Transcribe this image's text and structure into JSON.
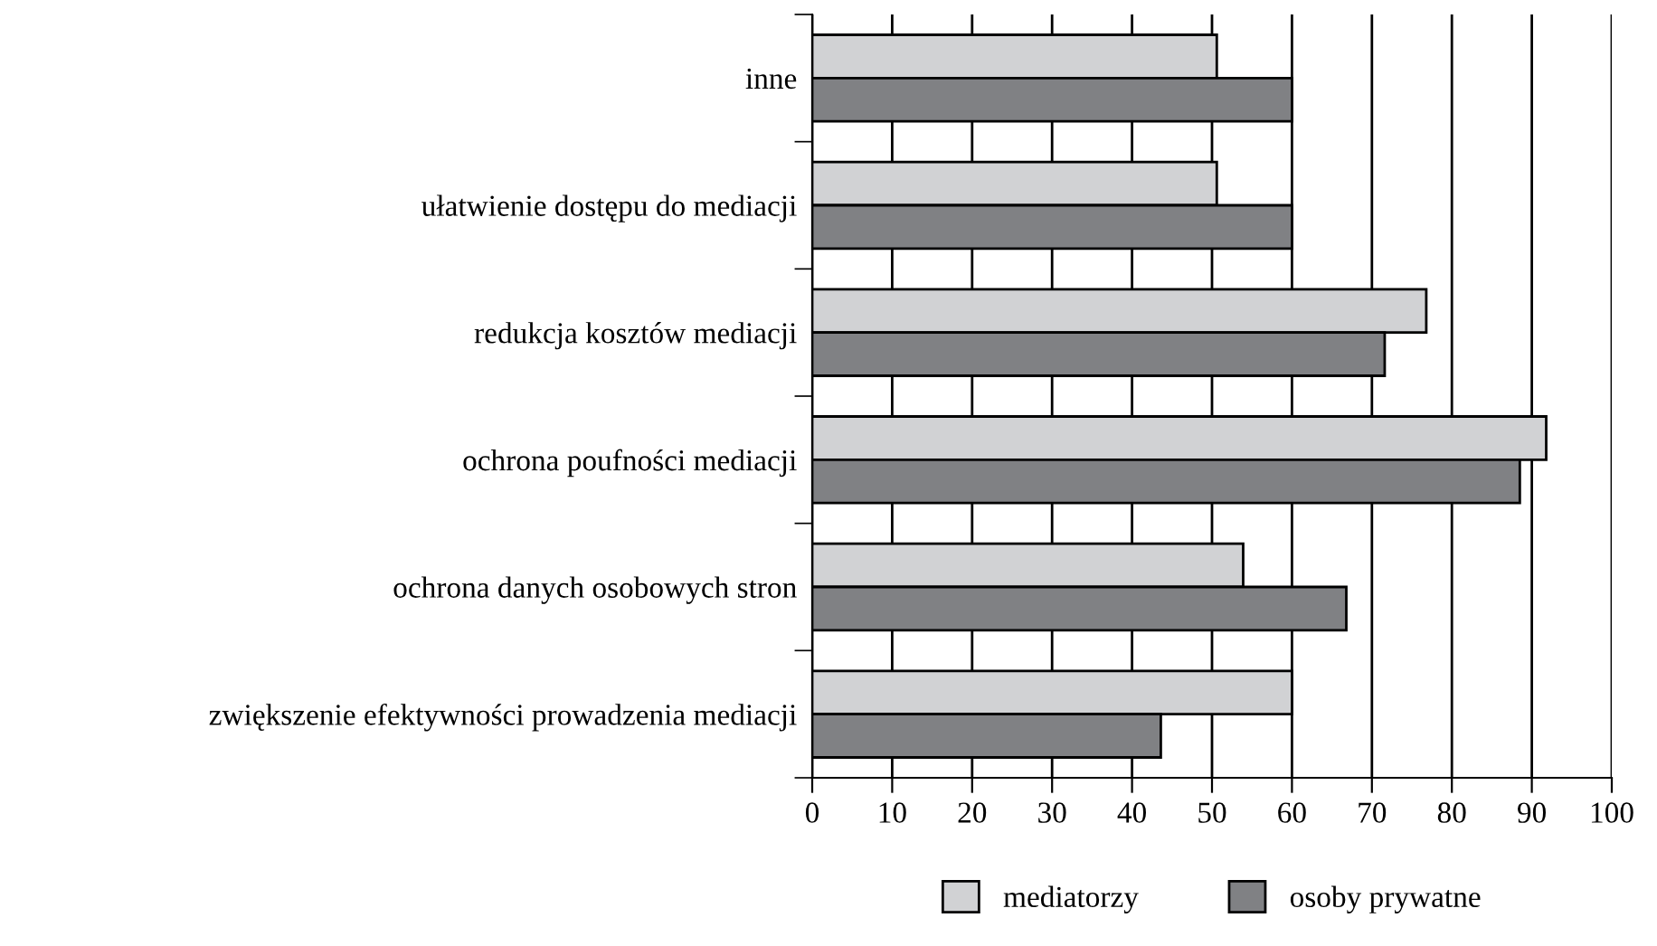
{
  "chart_data": {
    "type": "bar",
    "orientation": "horizontal",
    "categories": [
      "inne",
      "ułatwienie dostępu do mediacji",
      "redukcja kosztów mediacji",
      "ochrona poufności mediacji",
      "ochrona danych osobowych stron",
      "zwiększenie efektywności prowadzenia mediacji"
    ],
    "series": [
      {
        "name": "mediatorzy",
        "color": "#d1d2d4",
        "values": [
          50.6,
          50.6,
          76.8,
          91.8,
          53.9,
          60
        ]
      },
      {
        "name": "osoby prywatne",
        "color": "#808184",
        "values": [
          60,
          60,
          71.6,
          88.5,
          66.8,
          43.6
        ]
      }
    ],
    "xlim": [
      0,
      100
    ],
    "xticks": [
      0,
      10,
      20,
      30,
      40,
      50,
      60,
      70,
      80,
      90,
      100
    ],
    "grid": "x",
    "legend": "bottom"
  }
}
